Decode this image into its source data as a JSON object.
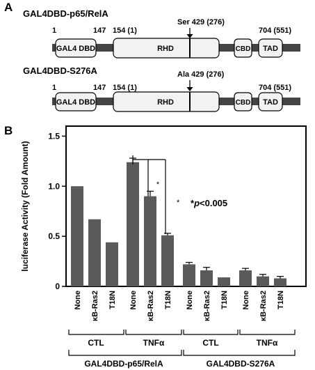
{
  "panel_a": {
    "label": "A",
    "constructs": [
      {
        "title": "GAL4DBD-p65/RelA",
        "num_start": "1",
        "num_147": "147",
        "num_154": "154 (1)",
        "site_label": "Ser 429 (276)",
        "num_end": "704 (551)",
        "domains": [
          "GAL4 DBD",
          "RHD",
          "CBD",
          "TAD"
        ]
      },
      {
        "title": "GAL4DBD-S276A",
        "num_start": "1",
        "num_147": "147",
        "num_154": "154 (1)",
        "site_label": "Ala 429 (276)",
        "num_end": "704 (551)",
        "domains": [
          "GAL4 DBD",
          "RHD",
          "CBD",
          "TAD"
        ]
      }
    ]
  },
  "panel_b": {
    "label": "B",
    "significance_marker": "*",
    "significance_marker_2": "*",
    "significance_star": "*",
    "significance_p": "p",
    "significance_value": "<0.005",
    "treatments": [
      "CTL",
      "TNFα",
      "CTL",
      "TNFα"
    ],
    "constructs": [
      "GAL4DBD-p65/RelA",
      "GAL4DBD-S276A"
    ]
  },
  "colors": {
    "bar": "#5a5a5a",
    "domain_fill": "#f2f2f2",
    "backbone": "#444444"
  },
  "chart_data": {
    "type": "bar",
    "title": "",
    "xlabel": "",
    "ylabel": "luciferase Activity (Fold Amount)",
    "ylim": [
      0,
      1.6
    ],
    "yticks": [
      "0",
      "0.5",
      "1.0",
      "1.5"
    ],
    "ytick_values": [
      0,
      0.5,
      1.0,
      1.5
    ],
    "categories": [
      "None",
      "κB-Ras2",
      "T18N",
      "None",
      "κB-Ras2",
      "T18N",
      "None",
      "κB-Ras2",
      "T18N",
      "None",
      "κB-Ras2",
      "T18N"
    ],
    "values": [
      1.0,
      0.67,
      0.44,
      1.24,
      0.9,
      0.51,
      0.22,
      0.16,
      0.09,
      0.16,
      0.1,
      0.08
    ],
    "errors": [
      0,
      0,
      0,
      0.04,
      0.05,
      0.02,
      0.02,
      0.03,
      0,
      0.02,
      0.02,
      0.02
    ],
    "grid": false,
    "legend": "none"
  }
}
